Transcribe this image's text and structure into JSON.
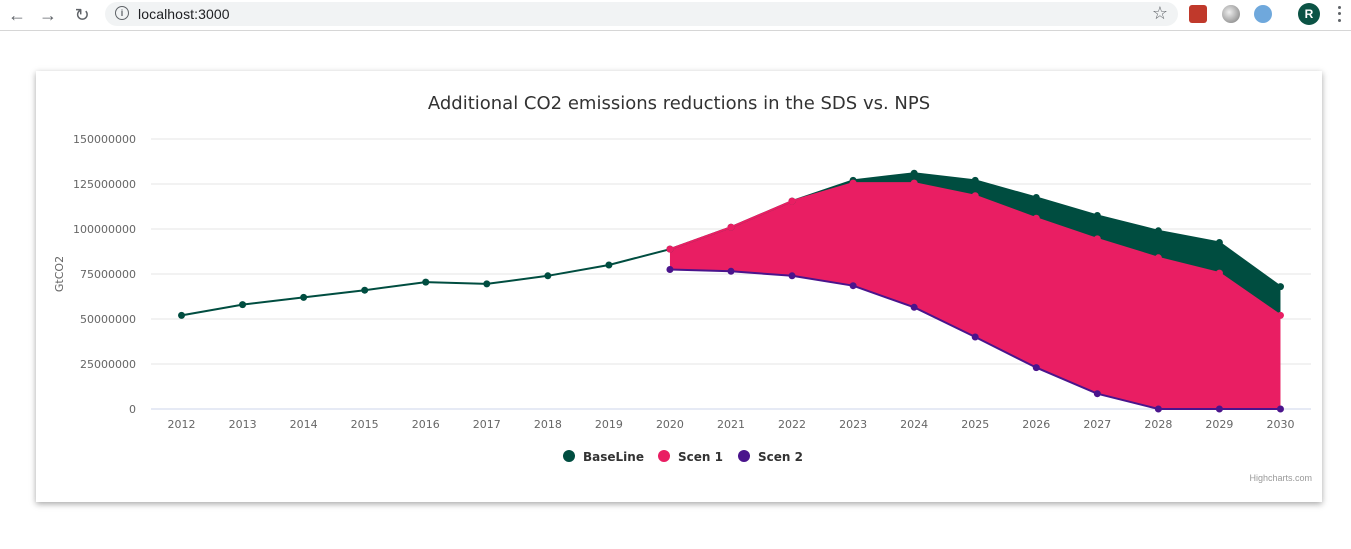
{
  "browser": {
    "url": "localhost:3000",
    "avatar_letter": "R"
  },
  "chart_data": {
    "type": "area",
    "title": "Additional CO2 emissions reductions in the SDS vs. NPS",
    "ylabel": "GtCO2",
    "xlabel": "",
    "ylim": [
      0,
      150000000
    ],
    "yticks": [
      "0",
      "25000000",
      "50000000",
      "75000000",
      "100000000",
      "125000000",
      "150000000"
    ],
    "grid": true,
    "legend_position": "bottom",
    "categories": [
      "2012",
      "2013",
      "2014",
      "2015",
      "2016",
      "2017",
      "2018",
      "2019",
      "2020",
      "2021",
      "2022",
      "2023",
      "2024",
      "2025",
      "2026",
      "2027",
      "2028",
      "2029",
      "2030"
    ],
    "series": [
      {
        "name": "BaseLine",
        "color": "#004d40",
        "values": [
          52000000,
          58000000,
          62000000,
          66000000,
          70500000,
          69500000,
          74000000,
          80000000,
          88800000,
          101000000,
          115500000,
          127000000,
          131000000,
          127000000,
          117500000,
          107500000,
          99000000,
          92500000,
          68000000
        ]
      },
      {
        "name": "Scen 1",
        "color": "#e91e63",
        "values": [
          null,
          null,
          null,
          null,
          null,
          null,
          null,
          null,
          88800000,
          101000000,
          115500000,
          125500000,
          125500000,
          118500000,
          106000000,
          94500000,
          84000000,
          75500000,
          52000000
        ]
      },
      {
        "name": "Scen 2",
        "color": "#4a148c",
        "values": [
          null,
          null,
          null,
          null,
          null,
          null,
          null,
          null,
          77500000,
          76500000,
          74000000,
          68500000,
          56500000,
          40000000,
          23000000,
          8500000,
          0,
          0,
          0
        ]
      }
    ],
    "credit": "Highcharts.com"
  }
}
